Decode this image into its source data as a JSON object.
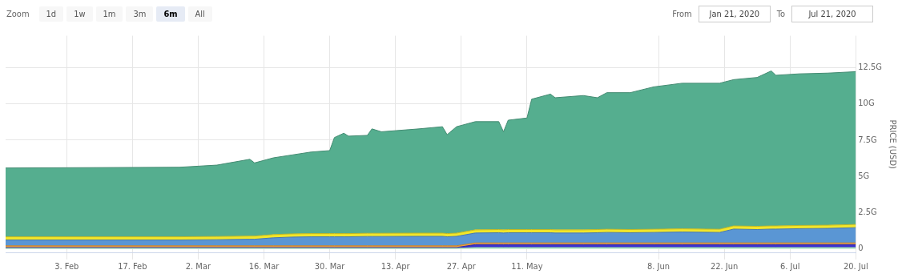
{
  "chart_data": {
    "type": "area",
    "stacked": true,
    "ylabel": "PRICE (USD)",
    "legend": false,
    "grid": true,
    "marker": "none",
    "annotations": [
      "Zoom",
      "1d",
      "1w",
      "1m",
      "3m",
      "6m",
      "All",
      "From",
      "Jan 21, 2020",
      "To",
      "Jul 21, 2020"
    ],
    "x": [
      "2020-01-21",
      "2020-02-27",
      "2020-03-06",
      "2020-03-13",
      "2020-03-14",
      "2020-03-18",
      "2020-03-22",
      "2020-03-26",
      "2020-03-30",
      "2020-03-31",
      "2020-04-02",
      "2020-04-03",
      "2020-04-07",
      "2020-04-08",
      "2020-04-10",
      "2020-04-18",
      "2020-04-23",
      "2020-04-24",
      "2020-04-26",
      "2020-04-30",
      "2020-05-05",
      "2020-05-06",
      "2020-05-07",
      "2020-05-11",
      "2020-05-12",
      "2020-05-16",
      "2020-05-17",
      "2020-05-23",
      "2020-05-26",
      "2020-05-28",
      "2020-06-02",
      "2020-06-07",
      "2020-06-13",
      "2020-06-21",
      "2020-06-24",
      "2020-06-29",
      "2020-07-02",
      "2020-07-03",
      "2020-07-08",
      "2020-07-14",
      "2020-07-20"
    ],
    "series": [
      {
        "color": "#b5f5d0",
        "values": [
          0.03,
          0.03,
          0.03,
          0.03,
          0.03,
          0.03,
          0.03,
          0.03,
          0.03,
          0.03,
          0.03,
          0.03,
          0.03,
          0.03,
          0.03,
          0.03,
          0.03,
          0.03,
          0.03,
          0.08,
          0.08,
          0.08,
          0.08,
          0.08,
          0.08,
          0.08,
          0.08,
          0.08,
          0.08,
          0.08,
          0.08,
          0.08,
          0.08,
          0.08,
          0.08,
          0.08,
          0.08,
          0.08,
          0.08,
          0.08,
          0.08
        ]
      },
      {
        "color": "#3b2fd0",
        "values": [
          0.05,
          0.05,
          0.05,
          0.05,
          0.05,
          0.05,
          0.05,
          0.05,
          0.05,
          0.05,
          0.05,
          0.05,
          0.05,
          0.05,
          0.05,
          0.05,
          0.05,
          0.05,
          0.05,
          0.2,
          0.2,
          0.2,
          0.2,
          0.2,
          0.2,
          0.2,
          0.2,
          0.2,
          0.2,
          0.2,
          0.2,
          0.2,
          0.2,
          0.2,
          0.2,
          0.2,
          0.2,
          0.2,
          0.2,
          0.2,
          0.2
        ]
      },
      {
        "color": "#f0a23c",
        "values": [
          0.12,
          0.12,
          0.12,
          0.12,
          0.12,
          0.12,
          0.12,
          0.12,
          0.12,
          0.12,
          0.12,
          0.12,
          0.12,
          0.12,
          0.12,
          0.12,
          0.12,
          0.12,
          0.12,
          0.12,
          0.12,
          0.12,
          0.12,
          0.12,
          0.12,
          0.12,
          0.12,
          0.12,
          0.12,
          0.12,
          0.12,
          0.12,
          0.12,
          0.12,
          0.12,
          0.12,
          0.12,
          0.12,
          0.12,
          0.12,
          0.12
        ]
      },
      {
        "color": "#5a96d4",
        "values": [
          0.4,
          0.4,
          0.42,
          0.45,
          0.45,
          0.55,
          0.6,
          0.62,
          0.62,
          0.62,
          0.62,
          0.62,
          0.64,
          0.64,
          0.64,
          0.65,
          0.65,
          0.62,
          0.65,
          0.68,
          0.7,
          0.68,
          0.7,
          0.7,
          0.7,
          0.7,
          0.68,
          0.68,
          0.7,
          0.72,
          0.7,
          0.72,
          0.75,
          0.72,
          0.95,
          0.92,
          0.95,
          0.95,
          0.98,
          1.0,
          1.05
        ]
      },
      {
        "color": "#f2e62a",
        "values": [
          0.22,
          0.22,
          0.22,
          0.22,
          0.22,
          0.22,
          0.22,
          0.22,
          0.22,
          0.22,
          0.22,
          0.22,
          0.22,
          0.22,
          0.22,
          0.22,
          0.22,
          0.22,
          0.22,
          0.22,
          0.22,
          0.22,
          0.22,
          0.22,
          0.22,
          0.22,
          0.22,
          0.22,
          0.22,
          0.22,
          0.22,
          0.22,
          0.22,
          0.22,
          0.22,
          0.22,
          0.22,
          0.22,
          0.22,
          0.22,
          0.22
        ]
      },
      {
        "color": "#55ae8f",
        "values": [
          4.75,
          4.8,
          4.93,
          5.3,
          5.05,
          5.3,
          5.45,
          5.63,
          5.73,
          6.63,
          6.93,
          6.73,
          6.76,
          7.21,
          7.01,
          7.2,
          7.35,
          6.83,
          7.35,
          7.47,
          7.45,
          6.77,
          7.55,
          7.7,
          9.0,
          9.35,
          9.12,
          9.27,
          9.1,
          9.43,
          9.45,
          9.83,
          10.05,
          10.08,
          10.1,
          10.28,
          10.7,
          10.4,
          10.47,
          10.5,
          10.55
        ]
      }
    ],
    "xlim": [
      "2020-01-21",
      "2020-07-20"
    ],
    "xticks": [
      {
        "value": "2020-02-03",
        "label": "3. Feb"
      },
      {
        "value": "2020-02-17",
        "label": "17. Feb"
      },
      {
        "value": "2020-03-02",
        "label": "2. Mar"
      },
      {
        "value": "2020-03-16",
        "label": "16. Mar"
      },
      {
        "value": "2020-03-30",
        "label": "30. Mar"
      },
      {
        "value": "2020-04-13",
        "label": "13. Apr"
      },
      {
        "value": "2020-04-27",
        "label": "27. Apr"
      },
      {
        "value": "2020-05-11",
        "label": "11. May"
      },
      {
        "value": "2020-06-08",
        "label": "8. Jun"
      },
      {
        "value": "2020-06-22",
        "label": "22. Jun"
      },
      {
        "value": "2020-07-06",
        "label": "6. Jul"
      },
      {
        "value": "2020-07-20",
        "label": "20. Jul"
      }
    ],
    "ylim": [
      -0.3,
      14.7
    ],
    "yticks": [
      0,
      {
        "value": 2.5,
        "label": "2.5G"
      },
      {
        "value": 5,
        "label": "5G"
      },
      {
        "value": 7.5,
        "label": "7.5G"
      },
      {
        "value": 10,
        "label": "10G"
      },
      {
        "value": 12.5,
        "label": "12.5G"
      }
    ]
  }
}
